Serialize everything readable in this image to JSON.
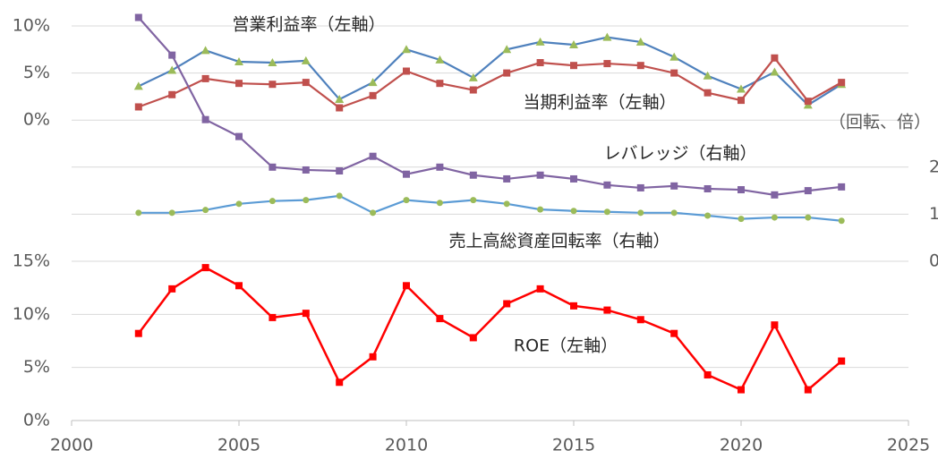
{
  "chart_data": [
    {
      "type": "line",
      "x": [
        2002,
        2003,
        2004,
        2005,
        2006,
        2007,
        2008,
        2009,
        2010,
        2011,
        2012,
        2013,
        2014,
        2015,
        2016,
        2017,
        2018,
        2019,
        2020,
        2021,
        2022,
        2023
      ],
      "xlim": [
        2000,
        2025
      ],
      "ylim": [
        -15,
        10
      ],
      "yticks": [
        {
          "value": 0,
          "label": "0%"
        },
        {
          "value": 5,
          "label": "5%"
        },
        {
          "value": 10,
          "label": "10%"
        }
      ],
      "y2lim": [
        0,
        5
      ],
      "y2ticks": [
        0,
        1,
        2
      ],
      "y2label": "（回転、倍）",
      "grid": true,
      "series": [
        {
          "name": "営業利益率（左軸）",
          "color": "#4f81bd",
          "marker_color": "#9bbb59",
          "values": [
            3.6,
            5.3,
            7.4,
            6.2,
            6.1,
            6.3,
            2.2,
            4.0,
            7.5,
            6.4,
            4.5,
            7.5,
            8.3,
            8.0,
            8.8,
            8.3,
            6.7,
            4.7,
            3.3,
            5.1,
            1.6,
            3.8
          ]
        },
        {
          "name": "当期利益率（左軸）",
          "color": "#c0504d",
          "marker_color": "#c0504d",
          "values": [
            1.4,
            2.7,
            4.4,
            3.9,
            3.8,
            4.0,
            1.3,
            2.6,
            5.2,
            3.9,
            3.2,
            5.0,
            6.1,
            5.8,
            6.0,
            5.8,
            5.0,
            2.9,
            2.1,
            6.6,
            2.0,
            4.0
          ]
        },
        {
          "name": "レバレッジ（右軸）",
          "color": "#8064a2",
          "marker_color": "#8064a2",
          "axis": "y2",
          "values": [
            5.18,
            4.38,
            3.01,
            2.65,
            2.0,
            1.94,
            1.92,
            2.23,
            1.85,
            2.0,
            1.83,
            1.75,
            1.83,
            1.75,
            1.62,
            1.56,
            1.6,
            1.54,
            1.52,
            1.41,
            1.5,
            1.58
          ]
        },
        {
          "name": "売上高総資産回転率（右軸）",
          "color": "#5b9bd5",
          "marker_color": "#9bbb59",
          "axis": "y2",
          "values": [
            1.03,
            1.03,
            1.09,
            1.22,
            1.28,
            1.3,
            1.39,
            1.03,
            1.3,
            1.24,
            1.3,
            1.22,
            1.1,
            1.07,
            1.05,
            1.03,
            1.03,
            0.97,
            0.9,
            0.93,
            0.93,
            0.86
          ]
        }
      ]
    },
    {
      "type": "line",
      "x": [
        2002,
        2003,
        2004,
        2005,
        2006,
        2007,
        2008,
        2009,
        2010,
        2011,
        2012,
        2013,
        2014,
        2015,
        2016,
        2017,
        2018,
        2019,
        2020,
        2021,
        2022,
        2023
      ],
      "xlim": [
        2000,
        2025
      ],
      "xticks": [
        2000,
        2005,
        2010,
        2015,
        2020,
        2025
      ],
      "ylim": [
        0,
        15
      ],
      "yticks": [
        {
          "value": 0,
          "label": "0%"
        },
        {
          "value": 5,
          "label": "5%"
        },
        {
          "value": 10,
          "label": "10%"
        },
        {
          "value": 15,
          "label": "15%"
        }
      ],
      "grid": true,
      "series": [
        {
          "name": "ROE（左軸）",
          "color": "#ff0000",
          "marker_color": "#ff0000",
          "values": [
            8.2,
            12.4,
            14.4,
            12.7,
            9.7,
            10.1,
            3.6,
            6.0,
            12.7,
            9.6,
            7.8,
            11.0,
            12.4,
            10.8,
            10.4,
            9.5,
            8.2,
            4.3,
            2.9,
            9.0,
            2.9,
            5.6
          ]
        }
      ]
    }
  ]
}
